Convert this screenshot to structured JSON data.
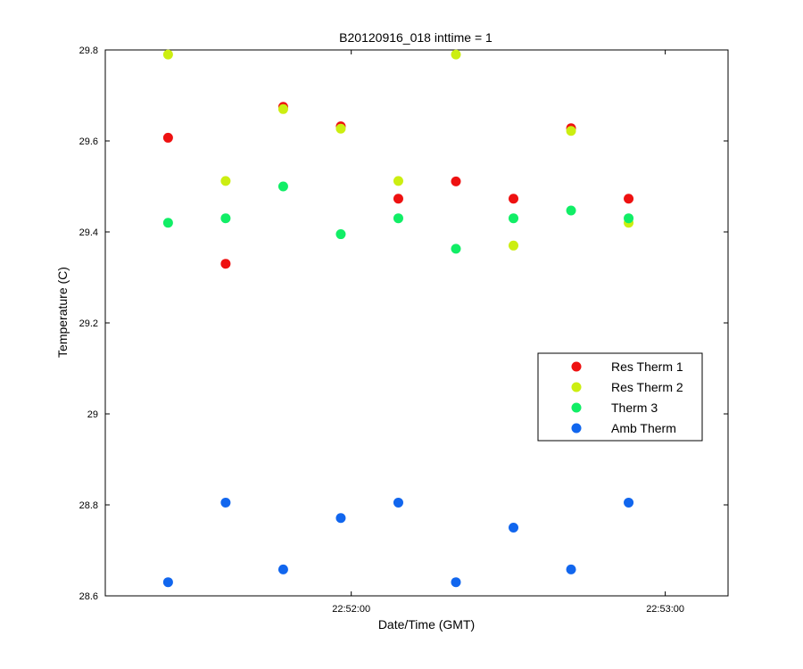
{
  "chart_data": {
    "type": "scatter",
    "title": "B20120916_018 inttime = 1",
    "xlabel": "Date/Time (GMT)",
    "ylabel": "Temperature (C)",
    "x_unit": "time (HH:MM:SS)",
    "xlim": [
      "22:51:13",
      "22:53:12"
    ],
    "ylim": [
      28.6,
      29.8
    ],
    "x_ticks": [
      "22:52:00",
      "22:53:00"
    ],
    "y_ticks": [
      "28.6",
      "28.8",
      "29",
      "29.2",
      "29.4",
      "29.6",
      "29.8"
    ],
    "x": [
      "22:51:25",
      "22:51:36",
      "22:51:47",
      "22:51:58",
      "22:52:09",
      "22:52:20",
      "22:52:31",
      "22:52:42",
      "22:52:53"
    ],
    "legend_position": "right",
    "grid": false,
    "series": [
      {
        "name": "Res Therm 1",
        "color": "#ee1111",
        "values": [
          29.607,
          29.33,
          29.675,
          29.632,
          29.473,
          29.511,
          29.473,
          29.628,
          29.473
        ]
      },
      {
        "name": "Res Therm 2",
        "color": "#ccee11",
        "values": [
          29.79,
          29.512,
          29.67,
          29.627,
          29.512,
          29.79,
          29.37,
          29.622,
          29.42
        ]
      },
      {
        "name": "Therm 3",
        "color": "#11ee66",
        "values": [
          29.42,
          29.43,
          29.5,
          29.395,
          29.43,
          29.363,
          29.43,
          29.447,
          29.43
        ]
      },
      {
        "name": "Amb Therm",
        "color": "#1166ee",
        "values": [
          28.63,
          28.805,
          28.658,
          28.771,
          28.805,
          28.63,
          28.75,
          28.658,
          28.805
        ]
      }
    ]
  }
}
